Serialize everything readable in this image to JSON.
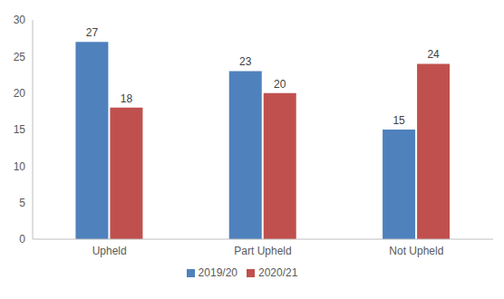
{
  "chart_data": {
    "type": "bar",
    "categories": [
      "Upheld",
      "Part Upheld",
      "Not Upheld"
    ],
    "series": [
      {
        "name": "2019/20",
        "color": "#4f81bd",
        "values": [
          27,
          23,
          15
        ]
      },
      {
        "name": "2020/21",
        "color": "#c0504d",
        "values": [
          18,
          20,
          24
        ]
      }
    ],
    "ylim": [
      0,
      30
    ],
    "yticks": [
      0,
      5,
      10,
      15,
      20,
      25,
      30
    ],
    "grid": false,
    "legend": "bottom",
    "data_labels": true
  }
}
